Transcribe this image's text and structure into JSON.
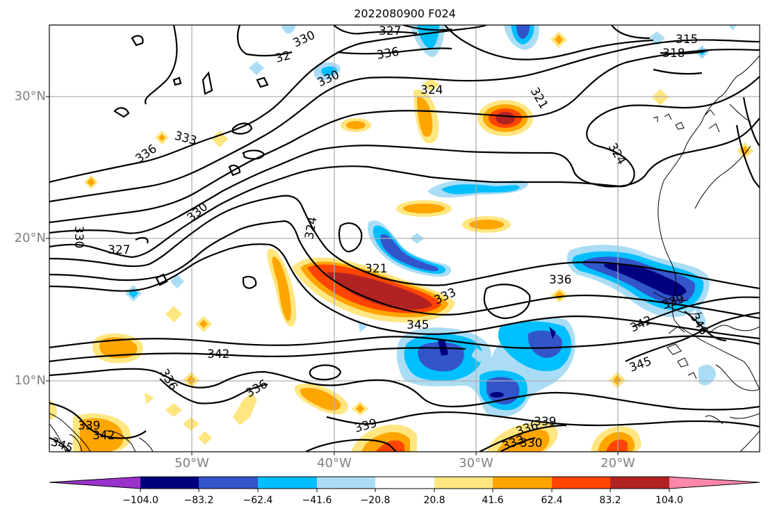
{
  "title": "2022080900 F024",
  "lat_labels": [
    "30°N",
    "20°N",
    "10°N"
  ],
  "lon_labels": [
    "50°W",
    "40°W",
    "30°W",
    "20°W"
  ],
  "contour_labels": [
    "327",
    "330",
    "32",
    "336",
    "330",
    "324",
    "321",
    "324",
    "315",
    "318",
    "333",
    "336",
    "330",
    "327",
    "324",
    "330",
    "321",
    "333",
    "345",
    "336",
    "339",
    "342",
    "342",
    "336",
    "336",
    "339",
    "339",
    "342",
    "339",
    "336",
    "330",
    "333",
    "345",
    "345",
    "346"
  ],
  "colorbar": {
    "ticks": [
      "−104.0",
      "−83.2",
      "−62.4",
      "−41.6",
      "−20.8",
      "20.8",
      "41.6",
      "62.4",
      "83.2",
      "104.0"
    ],
    "colors": [
      "#9933cc",
      "#00007f",
      "#3355cc",
      "#00bfff",
      "#aaddf5",
      "#ffffff",
      "#ffe680",
      "#ffa500",
      "#ff4500",
      "#b22222",
      "#ff88aa"
    ]
  }
}
